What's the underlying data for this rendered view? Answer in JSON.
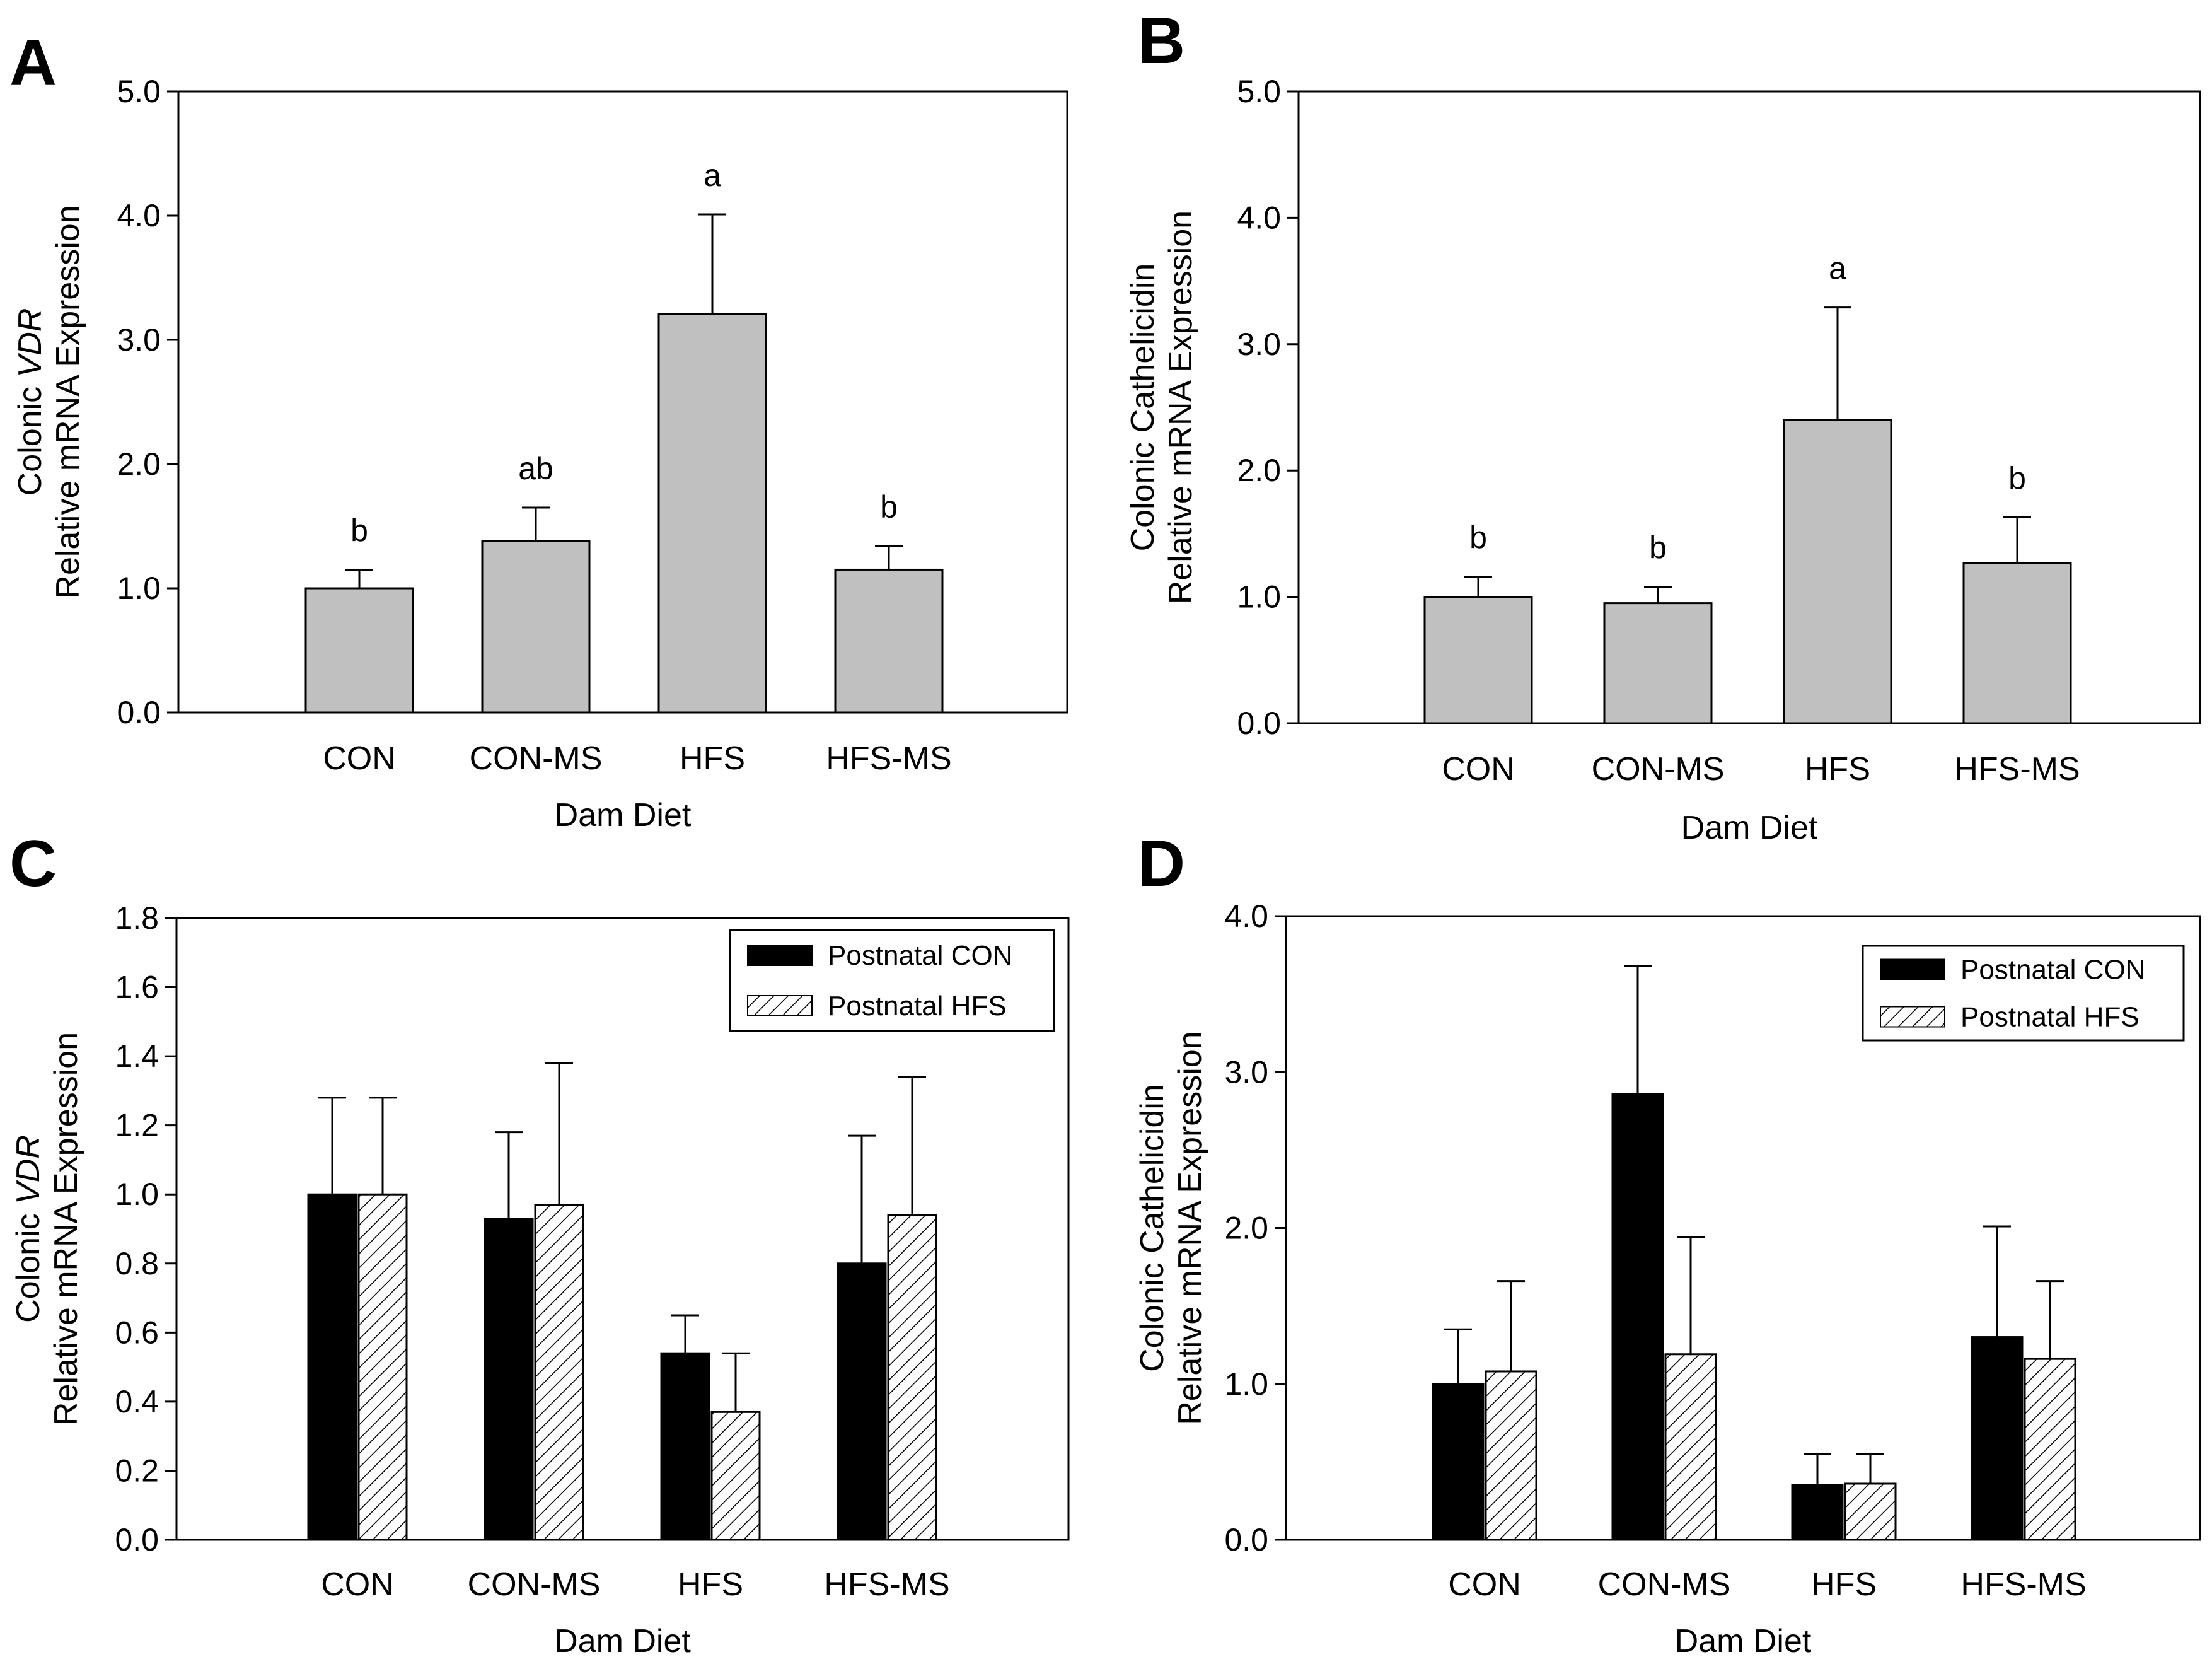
{
  "colors": {
    "bar_single": "#c0c0c0",
    "postnatal_con": "#000000",
    "postnatal_hfs_hatch": "#000000",
    "axis": "#000000",
    "background": "#ffffff"
  },
  "chart_data": [
    {
      "panel": "A",
      "type": "bar",
      "categories": [
        "CON",
        "CON-MS",
        "HFS",
        "HFS-MS"
      ],
      "values": [
        1.0,
        1.38,
        3.21,
        1.15
      ],
      "errors": [
        0.15,
        0.27,
        0.8,
        0.19
      ],
      "significance": [
        "b",
        "ab",
        "a",
        "b"
      ],
      "xlabel": "Dam Diet",
      "ylabel_line1_prefix": "Colonic ",
      "ylabel_line1_italic": "VDR",
      "ylabel_line2": "Relative mRNA Expression",
      "ylim": [
        0,
        5
      ],
      "yticks": [
        "0.0",
        "1.0",
        "2.0",
        "3.0",
        "4.0",
        "5.0"
      ],
      "grid": false
    },
    {
      "panel": "B",
      "type": "bar",
      "categories": [
        "CON",
        "CON-MS",
        "HFS",
        "HFS-MS"
      ],
      "values": [
        1.0,
        0.95,
        2.4,
        1.27
      ],
      "errors": [
        0.16,
        0.13,
        0.89,
        0.36
      ],
      "significance": [
        "b",
        "b",
        "a",
        "b"
      ],
      "xlabel": "Dam Diet",
      "ylabel_line1_prefix": "Colonic Cathelicidin",
      "ylabel_line1_italic": "",
      "ylabel_line2": "Relative mRNA Expression",
      "ylim": [
        0,
        5
      ],
      "yticks": [
        "0.0",
        "1.0",
        "2.0",
        "3.0",
        "4.0",
        "5.0"
      ],
      "grid": false
    },
    {
      "panel": "C",
      "type": "bar",
      "categories": [
        "CON",
        "CON-MS",
        "HFS",
        "HFS-MS"
      ],
      "series": [
        {
          "name": "Postnatal CON",
          "values": [
            1.0,
            0.93,
            0.54,
            0.8
          ],
          "errors": [
            0.28,
            0.25,
            0.11,
            0.37
          ]
        },
        {
          "name": "Postnatal HFS",
          "values": [
            1.0,
            0.97,
            0.37,
            0.94
          ],
          "errors": [
            0.28,
            0.41,
            0.17,
            0.4
          ]
        }
      ],
      "xlabel": "Dam Diet",
      "ylabel_line1_prefix": "Colonic ",
      "ylabel_line1_italic": "VDR",
      "ylabel_line2": "Relative mRNA Expression",
      "ylim": [
        0,
        1.8
      ],
      "yticks": [
        "0.0",
        "0.2",
        "0.4",
        "0.6",
        "0.8",
        "1.0",
        "1.2",
        "1.4",
        "1.6",
        "1.8"
      ],
      "legend": "top-right",
      "grid": false
    },
    {
      "panel": "D",
      "type": "bar",
      "categories": [
        "CON",
        "CON-MS",
        "HFS",
        "HFS-MS"
      ],
      "series": [
        {
          "name": "Postnatal CON",
          "values": [
            1.0,
            2.86,
            0.35,
            1.3
          ],
          "errors": [
            0.35,
            0.82,
            0.2,
            0.71
          ]
        },
        {
          "name": "Postnatal HFS",
          "values": [
            1.08,
            1.19,
            0.36,
            1.16
          ],
          "errors": [
            0.58,
            0.75,
            0.19,
            0.5
          ]
        }
      ],
      "xlabel": "Dam Diet",
      "ylabel_line1_prefix": "Colonic Cathelicidin",
      "ylabel_line1_italic": "",
      "ylabel_line2": "Relative mRNA Expression",
      "ylim": [
        0,
        4
      ],
      "yticks": [
        "0.0",
        "1.0",
        "2.0",
        "3.0",
        "4.0"
      ],
      "legend": "top-right",
      "grid": false
    }
  ]
}
